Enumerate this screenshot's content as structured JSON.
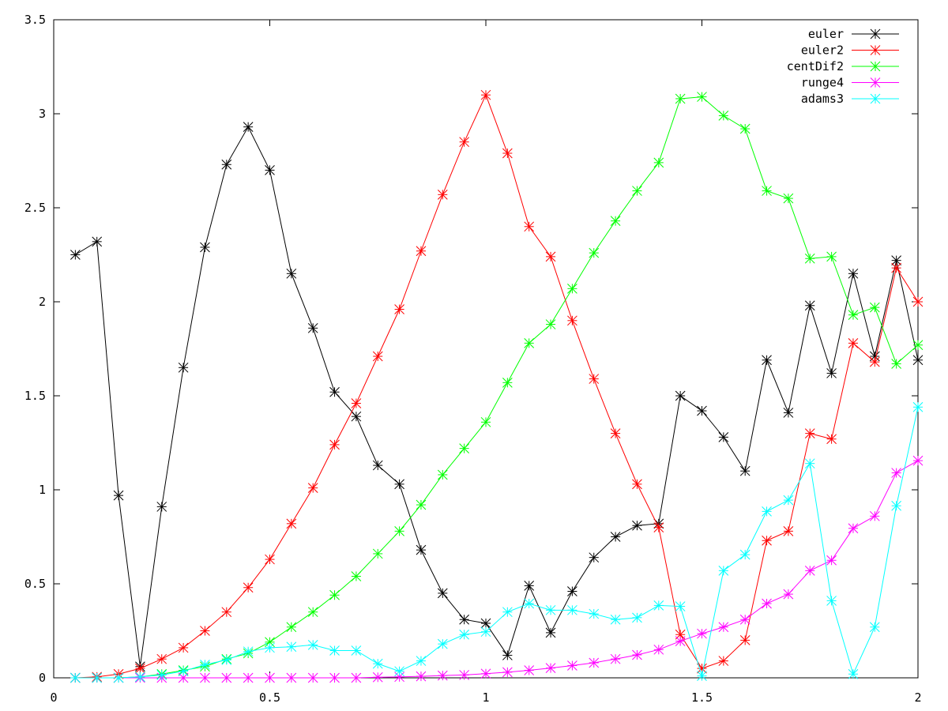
{
  "chart_data": {
    "type": "line",
    "title": "",
    "xlabel": "",
    "ylabel": "",
    "xlim": [
      0,
      2
    ],
    "ylim": [
      0,
      3.5
    ],
    "grid": false,
    "legend_position": "top-right",
    "x_ticks": [
      "0",
      "0.5",
      "1",
      "1.5",
      "2"
    ],
    "y_ticks": [
      "0",
      "0.5",
      "1",
      "1.5",
      "2",
      "2.5",
      "3",
      "3.5"
    ],
    "x": [
      0.05,
      0.1,
      0.15,
      0.2,
      0.25,
      0.3,
      0.35,
      0.4,
      0.45,
      0.5,
      0.55,
      0.6,
      0.65,
      0.7,
      0.75,
      0.8,
      0.85,
      0.9,
      0.95,
      1.0,
      1.05,
      1.1,
      1.15,
      1.2,
      1.25,
      1.3,
      1.35,
      1.4,
      1.45,
      1.5,
      1.55,
      1.6,
      1.65,
      1.7,
      1.75,
      1.8,
      1.85,
      1.9,
      1.95,
      2.0
    ],
    "series": [
      {
        "name": "euler",
        "color": "#000000",
        "values": [
          2.25,
          2.32,
          0.97,
          0.06,
          0.91,
          1.65,
          2.29,
          2.73,
          2.93,
          2.7,
          2.15,
          1.86,
          1.52,
          1.39,
          1.13,
          1.03,
          0.68,
          0.45,
          0.31,
          0.29,
          0.12,
          0.49,
          0.24,
          0.46,
          0.64,
          0.75,
          0.81,
          0.82,
          1.5,
          1.42,
          1.28,
          1.1,
          1.69,
          1.41,
          1.98,
          1.62,
          2.15,
          1.71,
          2.22,
          1.69
        ]
      },
      {
        "name": "euler2",
        "color": "#ff0000",
        "values": [
          0.0,
          0.005,
          0.02,
          0.05,
          0.1,
          0.16,
          0.25,
          0.35,
          0.48,
          0.63,
          0.82,
          1.01,
          1.24,
          1.46,
          1.71,
          1.96,
          2.27,
          2.57,
          2.85,
          3.1,
          2.79,
          2.4,
          2.24,
          1.9,
          1.59,
          1.3,
          1.03,
          0.8,
          0.23,
          0.05,
          0.09,
          0.2,
          0.73,
          0.78,
          1.3,
          1.27,
          1.78,
          1.68,
          2.18,
          2.0
        ]
      },
      {
        "name": "centDif2",
        "color": "#00ff00",
        "values": [
          0.0,
          0.0,
          0.0,
          0.005,
          0.02,
          0.04,
          0.06,
          0.1,
          0.13,
          0.19,
          0.27,
          0.35,
          0.44,
          0.54,
          0.66,
          0.78,
          0.92,
          1.08,
          1.22,
          1.36,
          1.57,
          1.78,
          1.88,
          2.07,
          2.26,
          2.43,
          2.59,
          2.74,
          3.08,
          3.09,
          2.99,
          2.92,
          2.59,
          2.55,
          2.23,
          2.24,
          1.93,
          1.97,
          1.67,
          1.77
        ]
      },
      {
        "name": "runge4",
        "color": "#ff00ff",
        "values": [
          0.0,
          0.0,
          0.0,
          0.0,
          0.0,
          0.0,
          0.0,
          0.0,
          0.0,
          0.0,
          0.0,
          0.0,
          0.0,
          0.0,
          0.003,
          0.005,
          0.008,
          0.012,
          0.015,
          0.022,
          0.03,
          0.04,
          0.052,
          0.065,
          0.08,
          0.1,
          0.122,
          0.15,
          0.195,
          0.235,
          0.27,
          0.31,
          0.395,
          0.445,
          0.57,
          0.625,
          0.795,
          0.86,
          1.09,
          1.155
        ]
      },
      {
        "name": "adams3",
        "color": "#00ffff",
        "values": [
          0.0,
          0.0,
          0.0,
          0.005,
          0.015,
          0.035,
          0.07,
          0.095,
          0.14,
          0.16,
          0.165,
          0.175,
          0.145,
          0.145,
          0.075,
          0.035,
          0.09,
          0.18,
          0.23,
          0.245,
          0.35,
          0.395,
          0.36,
          0.36,
          0.34,
          0.31,
          0.32,
          0.385,
          0.38,
          0.01,
          0.57,
          0.655,
          0.885,
          0.945,
          1.14,
          0.41,
          0.02,
          0.27,
          0.915,
          1.44
        ]
      }
    ]
  }
}
